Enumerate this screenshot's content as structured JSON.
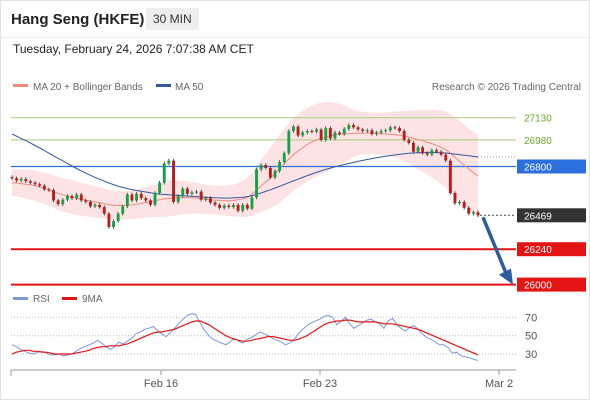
{
  "header": {
    "instrument": "Hang Seng (HKFE)",
    "timeframe": "30 MIN"
  },
  "timestamp": "Tuesday, February 24, 2026 7:07:38 AM CET",
  "legend": {
    "ma20_bb": "MA 20 + Bollinger Bands",
    "ma50": "MA 50",
    "copyright": "Research © 2026 Trading Central",
    "rsi": "RSI",
    "ma9": "9MA"
  },
  "colors": {
    "ma20": "#f08a80",
    "bollinger_fill": "#fde3e3",
    "ma50": "#33589c",
    "candle_up": "#11a34a",
    "candle_down": "#b81d1d",
    "resistance": "#a9cd7e",
    "pivot": "#2b6fdd",
    "support": "#e31414",
    "last_price_bg": "#333333",
    "arrow": "#2e5a9e",
    "rsi": "#7d98d8",
    "rsi_ma9": "#e31414"
  },
  "chart_data": [
    {
      "type": "candlestick",
      "series_name": "Hang Seng (HKFE)",
      "ylim": [
        25950,
        27250
      ],
      "x_tick_labels": [
        "Feb 16",
        "Feb 23",
        "Mar 2"
      ],
      "levels": [
        {
          "label": "27130",
          "value": 27130,
          "kind": "resistance"
        },
        {
          "label": "26980",
          "value": 26980,
          "kind": "resistance"
        },
        {
          "label": "26800",
          "value": 26800,
          "kind": "pivot"
        },
        {
          "label": "26469",
          "value": 26469,
          "kind": "last_price"
        },
        {
          "label": "26240",
          "value": 26240,
          "kind": "support"
        },
        {
          "label": "26000",
          "value": 26000,
          "kind": "support"
        }
      ],
      "forecast_arrow": {
        "from": 26469,
        "to": 26000
      },
      "close": [
        26720,
        26705,
        26715,
        26700,
        26690,
        26680,
        26670,
        26645,
        26640,
        26570,
        26545,
        26575,
        26600,
        26585,
        26610,
        26570,
        26560,
        26530,
        26540,
        26525,
        26480,
        26390,
        26430,
        26480,
        26530,
        26610,
        26570,
        26615,
        26585,
        26570,
        26540,
        26620,
        26690,
        26820,
        26840,
        26560,
        26600,
        26650,
        26615,
        26625,
        26630,
        26575,
        26585,
        26555,
        26540,
        26520,
        26535,
        26525,
        26540,
        26500,
        26540,
        26515,
        26590,
        26780,
        26810,
        26790,
        26725,
        26770,
        26830,
        26890,
        27040,
        27070,
        27010,
        27030,
        27040,
        27035,
        27050,
        26980,
        27060,
        26990,
        27030,
        27020,
        27055,
        27080,
        27065,
        27050,
        27040,
        27045,
        27020,
        27030,
        27040,
        27045,
        27065,
        27060,
        27040,
        26980,
        26960,
        26900,
        26930,
        26890,
        26880,
        26910,
        26900,
        26880,
        26840,
        26620,
        26550,
        26560,
        26520,
        26480,
        26490,
        26469
      ],
      "ma20": [
        26690,
        26688,
        26684,
        26680,
        26676,
        26670,
        26662,
        26652,
        26642,
        26630,
        26618,
        26608,
        26600,
        26592,
        26585,
        26578,
        26572,
        26566,
        26560,
        26555,
        26548,
        26542,
        26538,
        26536,
        26536,
        26538,
        26540,
        26544,
        26550,
        26556,
        26562,
        26568,
        26574,
        26580,
        26584,
        26586,
        26588,
        26590,
        26590,
        26588,
        26586,
        26582,
        26578,
        26574,
        26572,
        26570,
        26568,
        26568,
        26570,
        26574,
        26580,
        26590,
        26610,
        26640,
        26668,
        26695,
        26722,
        26752,
        26785,
        26818,
        26850,
        26880,
        26905,
        26928,
        26948,
        26965,
        26978,
        26990,
        27000,
        27008,
        27014,
        27018,
        27020,
        27022,
        27024,
        27025,
        27026,
        27026,
        27025,
        27024,
        27022,
        27020,
        27018,
        27016,
        27012,
        27005,
        26998,
        26990,
        26982,
        26974,
        26965,
        26955,
        26944,
        26930,
        26915,
        26890,
        26862,
        26835,
        26808,
        26782,
        26758,
        26735
      ],
      "ma50": [
        27020,
        27005,
        26990,
        26975,
        26958,
        26942,
        26925,
        26908,
        26890,
        26872,
        26855,
        26838,
        26820,
        26803,
        26786,
        26770,
        26755,
        26740,
        26726,
        26713,
        26700,
        26688,
        26677,
        26667,
        26658,
        26650,
        26643,
        26637,
        26632,
        26627,
        26622,
        26617,
        26613,
        26610,
        26608,
        26606,
        26604,
        26602,
        26600,
        26598,
        26596,
        26594,
        26592,
        26590,
        26588,
        26587,
        26586,
        26586,
        26587,
        26589,
        26592,
        26596,
        26602,
        26610,
        26620,
        26631,
        26642,
        26654,
        26666,
        26678,
        26690,
        26702,
        26714,
        26726,
        26738,
        26749,
        26760,
        26770,
        26780,
        26789,
        26798,
        26806,
        26813,
        26820,
        26827,
        26834,
        26841,
        26847,
        26853,
        26859,
        26864,
        26869,
        26874,
        26878,
        26882,
        26886,
        26889,
        26891,
        26893,
        26894,
        26895,
        26895,
        26894,
        26893,
        26891,
        26888,
        26884,
        26880,
        26876,
        26872,
        26868,
        26864
      ],
      "bb_width": [
        90,
        92,
        95,
        98,
        100,
        102,
        104,
        106,
        108,
        110,
        112,
        113,
        114,
        114,
        113,
        112,
        110,
        108,
        106,
        104,
        102,
        100,
        98,
        96,
        95,
        95,
        96,
        98,
        100,
        103,
        106,
        110,
        115,
        120,
        122,
        120,
        117,
        114,
        110,
        107,
        104,
        101,
        99,
        98,
        98,
        99,
        101,
        104,
        108,
        114,
        122,
        132,
        145,
        160,
        176,
        192,
        206,
        218,
        228,
        236,
        242,
        246,
        248,
        249,
        249,
        248,
        246,
        242,
        236,
        228,
        218,
        206,
        192,
        176,
        160,
        150,
        145,
        142,
        140,
        140,
        142,
        145,
        150,
        156,
        162,
        170,
        180,
        190,
        200,
        210,
        220,
        230,
        240,
        250,
        258,
        265,
        270,
        274,
        276,
        277,
        278,
        278
      ]
    },
    {
      "type": "line",
      "panel": "RSI",
      "ylim": [
        18,
        78
      ],
      "y_tick_labels": [
        "70",
        "50",
        "30"
      ],
      "series": [
        {
          "name": "RSI",
          "values": [
            40,
            38,
            35,
            33,
            31,
            30,
            32,
            33,
            31,
            29,
            29,
            30,
            28,
            29,
            30,
            33,
            36,
            38,
            40,
            42,
            45,
            42,
            38,
            35,
            38,
            43,
            41,
            44,
            47,
            52,
            54,
            57,
            58,
            60,
            56,
            52,
            49,
            53,
            58,
            63,
            68,
            72,
            74,
            73,
            64,
            56,
            50,
            46,
            44,
            42,
            40,
            43,
            47,
            44,
            42,
            46,
            48,
            51,
            54,
            52,
            50,
            47,
            45,
            43,
            40,
            42,
            46,
            52,
            57,
            61,
            64,
            66,
            68,
            71,
            72,
            70,
            62,
            66,
            70,
            63,
            58,
            61,
            64,
            67,
            68,
            65,
            63,
            58,
            66,
            69,
            62,
            58,
            55,
            59,
            61,
            57,
            52,
            48,
            46,
            43,
            40,
            40,
            37,
            31,
            32,
            28,
            27,
            26,
            24,
            23
          ]
        },
        {
          "name": "9MA",
          "values": [
            30,
            32,
            33,
            34,
            34,
            33,
            33,
            32,
            32,
            31,
            30,
            30,
            30,
            30,
            30,
            31,
            32,
            33,
            34,
            36,
            37,
            38,
            38,
            39,
            39,
            39,
            40,
            41,
            43,
            45,
            47,
            49,
            51,
            53,
            54,
            54,
            55,
            56,
            57,
            59,
            61,
            63,
            65,
            66,
            66,
            64,
            62,
            59,
            56,
            53,
            50,
            48,
            46,
            45,
            44,
            44,
            45,
            46,
            47,
            48,
            49,
            49,
            48,
            47,
            46,
            45,
            45,
            46,
            48,
            50,
            53,
            56,
            59,
            62,
            64,
            65,
            66,
            66,
            67,
            67,
            66,
            65,
            65,
            65,
            65,
            65,
            64,
            63,
            63,
            63,
            62,
            61,
            60,
            59,
            58,
            57,
            55,
            53,
            51,
            49,
            47,
            45,
            43,
            41,
            39,
            37,
            35,
            33,
            31,
            29
          ]
        }
      ]
    }
  ]
}
